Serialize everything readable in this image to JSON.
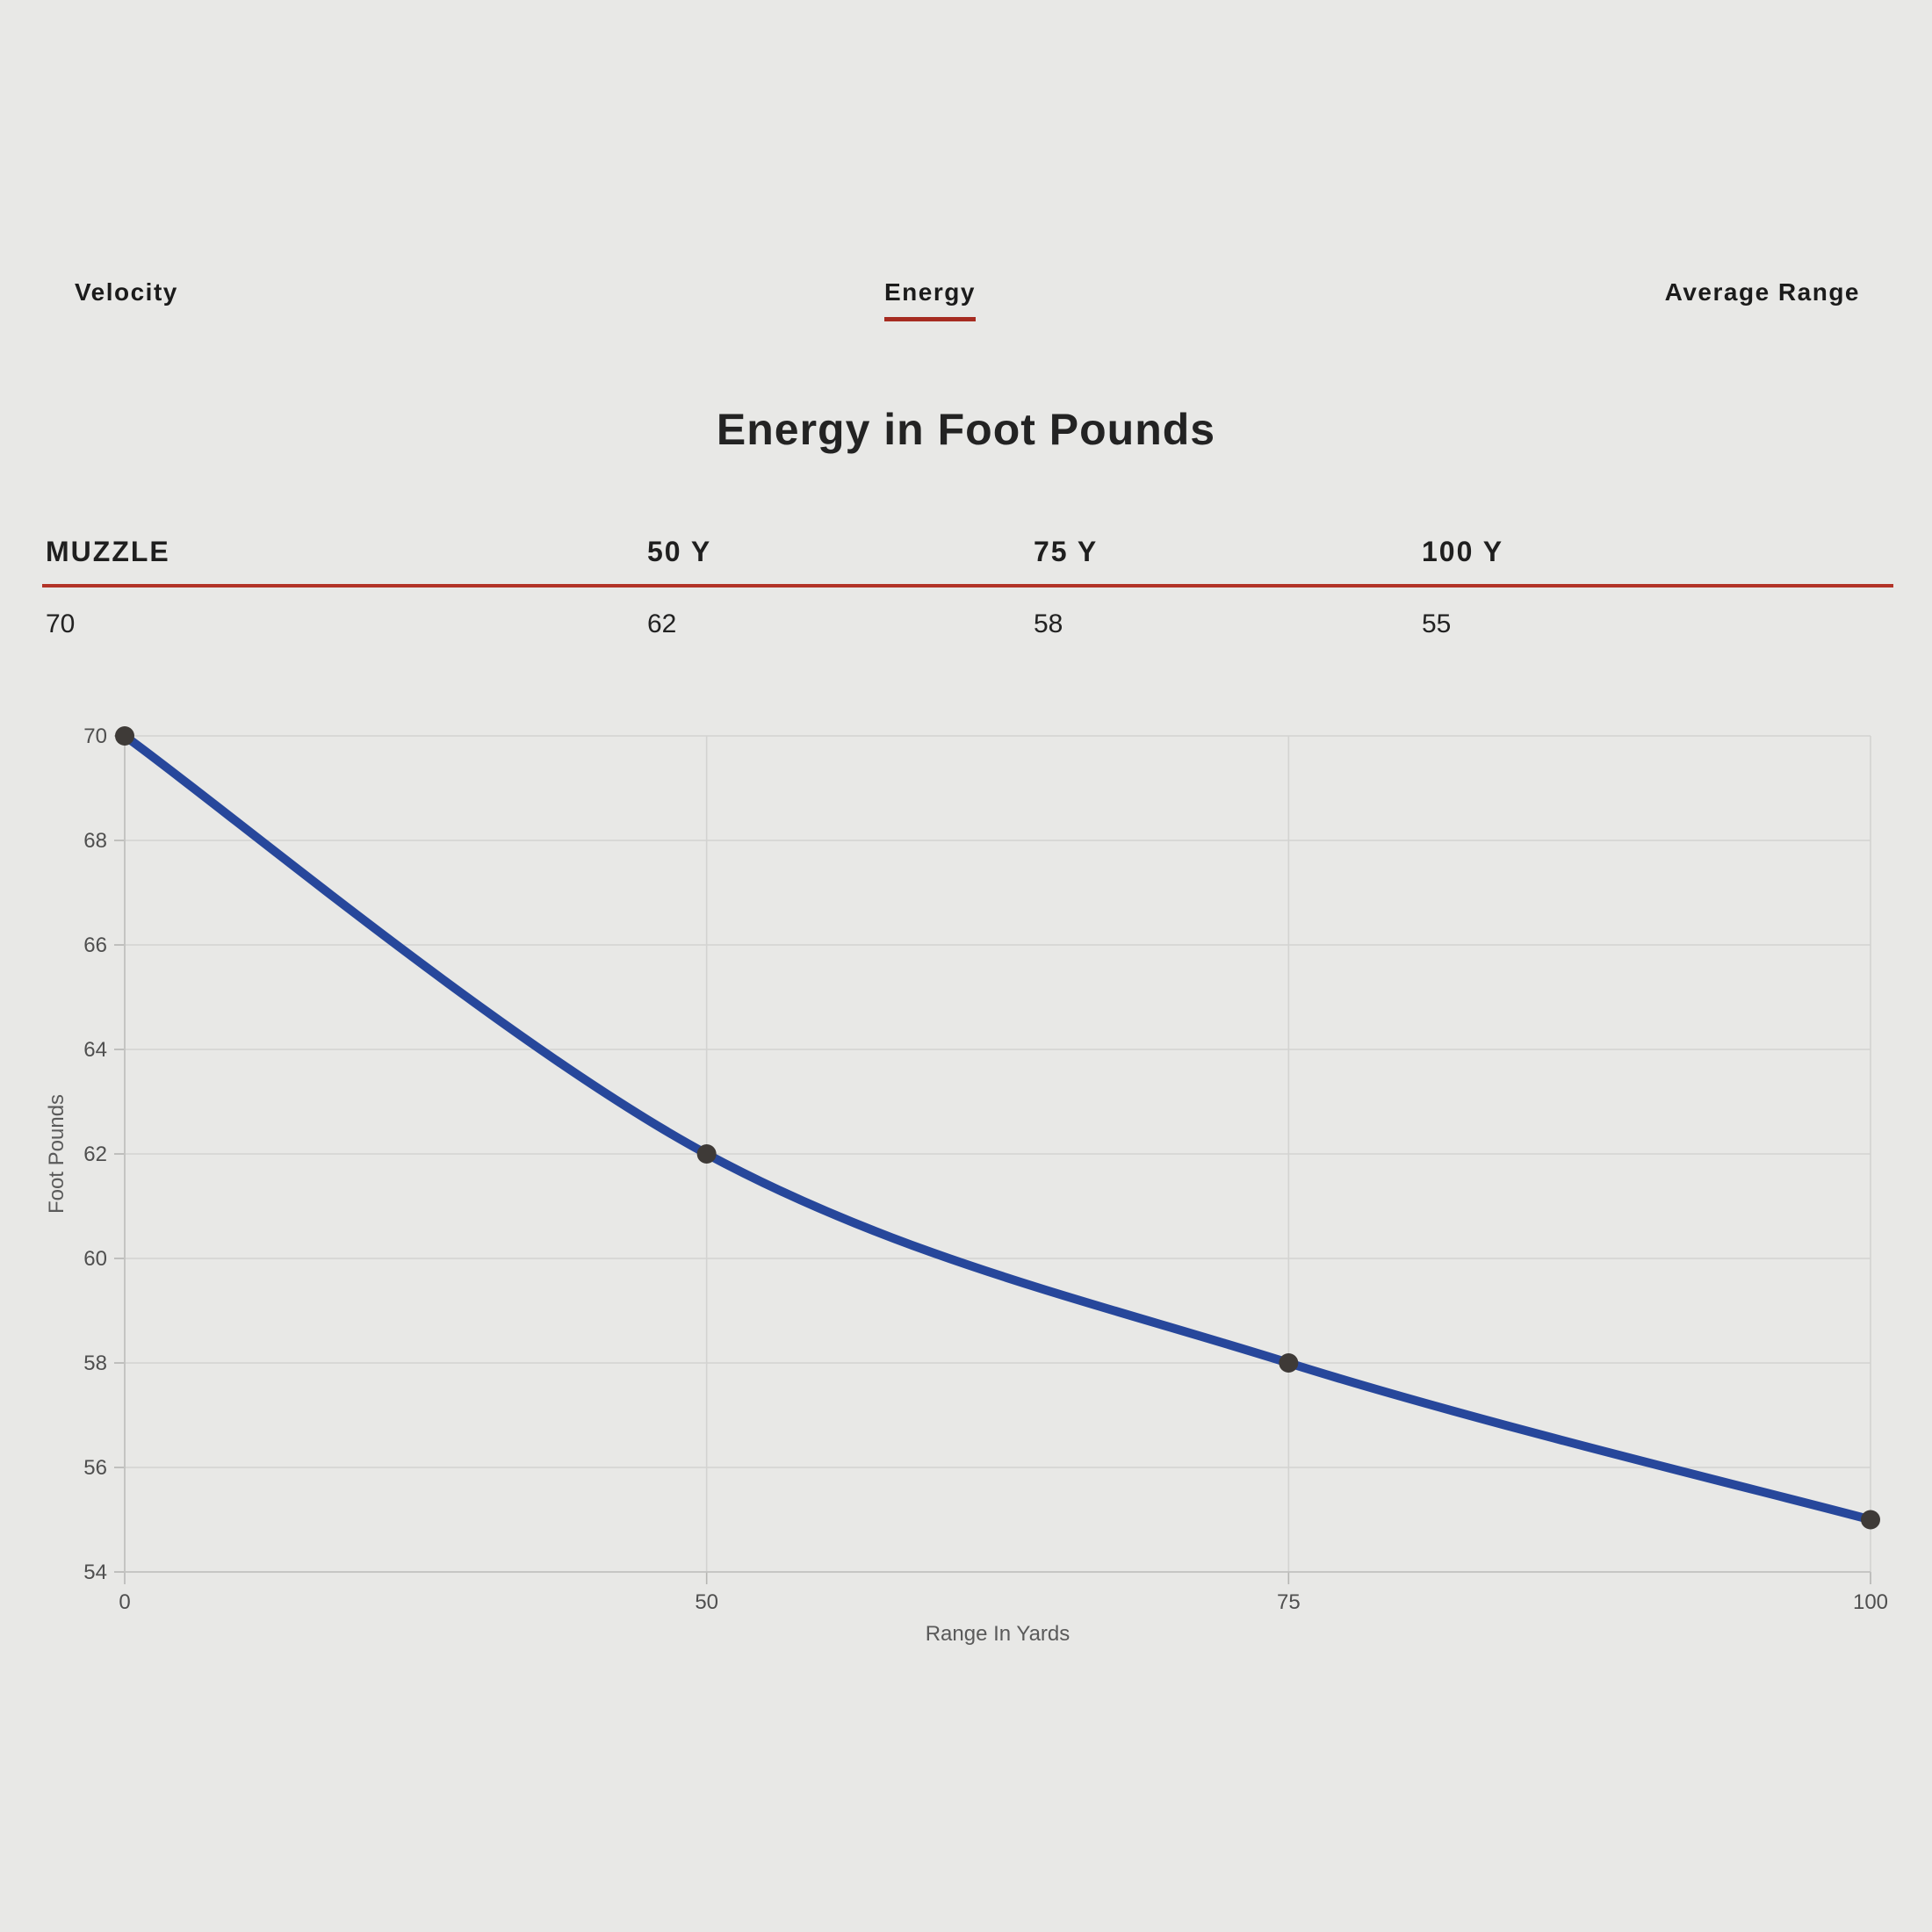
{
  "tabs": [
    {
      "label": "Velocity",
      "active": false
    },
    {
      "label": "Energy",
      "active": true
    },
    {
      "label": "Average Range",
      "active": false
    }
  ],
  "title": "Energy in Foot Pounds",
  "table": {
    "headers": [
      "MUZZLE",
      "50 Y",
      "75 Y",
      "100 Y"
    ],
    "values": [
      "70",
      "62",
      "58",
      "55"
    ]
  },
  "chart_data": {
    "type": "line",
    "categories": [
      "0",
      "50",
      "75",
      "100"
    ],
    "values": [
      70,
      62,
      58,
      55
    ],
    "title": "Energy in Foot Pounds",
    "xlabel": "Range In Yards",
    "ylabel": "Foot Pounds",
    "ylim": [
      54,
      70
    ],
    "ytick_step": 2,
    "grid": true,
    "legend": "none",
    "line_color": "#27479b",
    "point_color": "#3e3a37"
  },
  "colors": {
    "background": "#e8e8e6",
    "accent_red": "#a62c21",
    "table_rule_red": "#b23327",
    "gridline": "#d3d3d1",
    "axis_line": "#c2c2c0",
    "tick_mark": "#b5b5b3",
    "tick_text": "#4f4f4f",
    "axis_title_text": "#5a5a5a"
  }
}
